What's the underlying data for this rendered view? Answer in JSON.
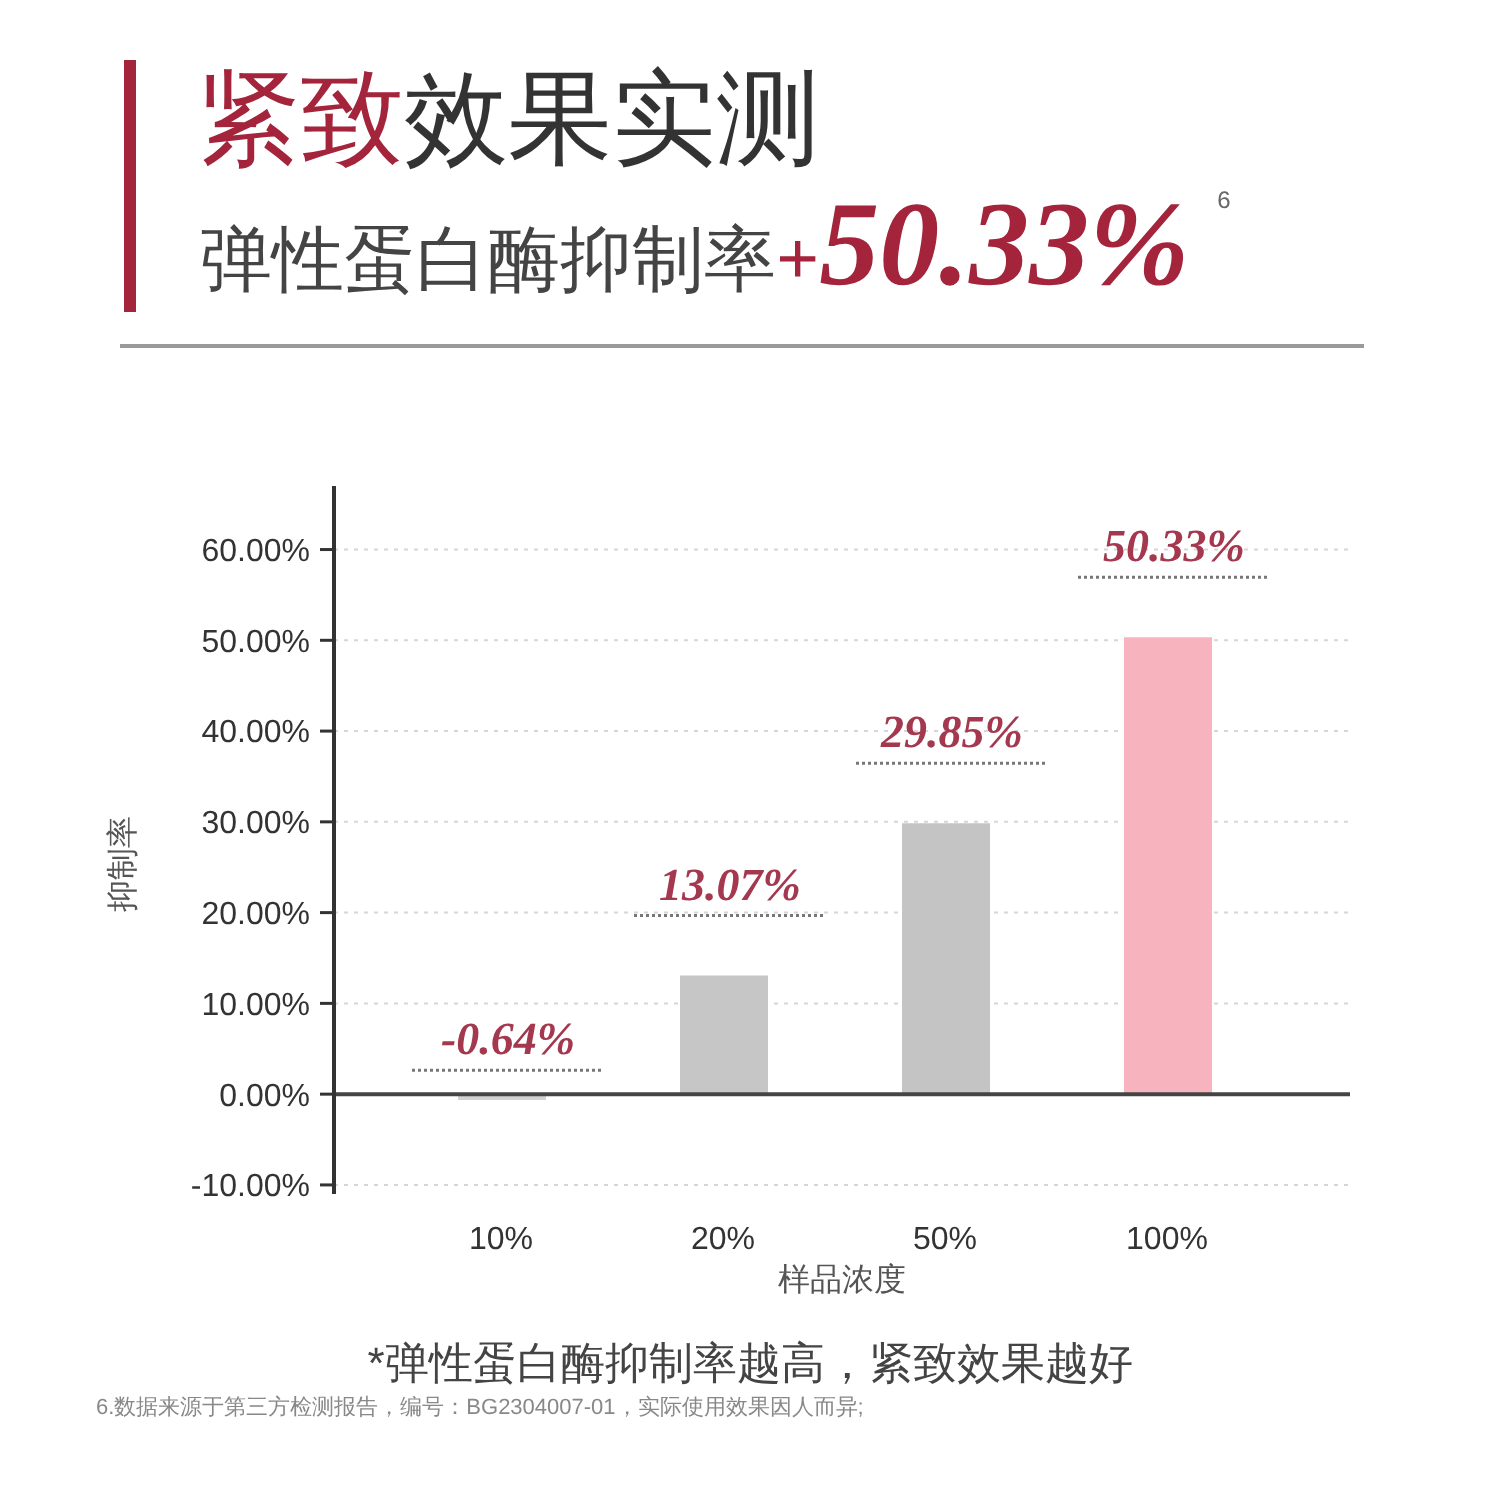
{
  "chart_data": {
    "type": "bar",
    "title": "紧致效果实测",
    "subtitle": "弹性蛋白酶抑制率+50.33%$^{6}$",
    "xlabel": "样品浓度",
    "ylabel": "抑制率",
    "categories": [
      "10%",
      "20%",
      "50%",
      "100%"
    ],
    "values": [
      -0.64,
      13.07,
      29.85,
      50.33
    ],
    "colors": [
      "#d2d2d2",
      "#c6c6c6",
      "#c4c4c4",
      "#f8b4be"
    ],
    "value_labels": [
      "-0.64%",
      "13.07%",
      "29.85%",
      "50.33%"
    ],
    "ylim": [
      -11,
      67
    ],
    "yticks": [
      {
        "value": -10,
        "label": "-10.00%"
      },
      {
        "value": 0,
        "label": "0.00%"
      },
      {
        "value": 10,
        "label": "10.00%"
      },
      {
        "value": 20,
        "label": "20.00%"
      },
      {
        "value": 30,
        "label": "30.00%"
      },
      {
        "value": 40,
        "label": "40.00%"
      },
      {
        "value": 50,
        "label": "50.00%"
      },
      {
        "value": 60,
        "label": "60.00%"
      }
    ],
    "grid": "y",
    "annotations": [
      "*弹性蛋白酶抑制率越高，紧致效果越好",
      "6.数据来源于第三方检测报告，编号：BG2304007-01，实际使用效果因人而异;"
    ]
  }
}
